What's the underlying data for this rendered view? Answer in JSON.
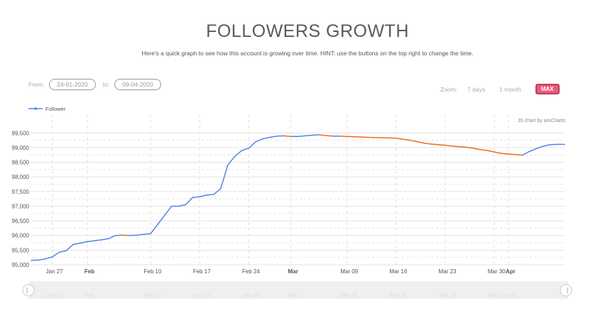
{
  "title": "FOLLOWERS GROWTH",
  "subtitle": "Here's a quick graph to see how this account is growing over time. HINT: use the buttons on the top right to change the time.",
  "range": {
    "from_label": "From:",
    "from_value": "24-01-2020",
    "to_label": "to:",
    "to_value": "09-04-2020"
  },
  "zoom": {
    "label": "Zoom:",
    "buttons": [
      "7 days",
      "1 month",
      "MAX"
    ],
    "active": "MAX"
  },
  "credit": "JS chart by amCharts",
  "colors": {
    "up": "#4f86e8",
    "down": "#f06a1d",
    "active_button": "#f0587a"
  },
  "chart_data": {
    "type": "line",
    "legend": "top-left",
    "series": [
      {
        "name": "Follower"
      }
    ],
    "x": [
      "2020-01-24",
      "2020-01-25",
      "2020-01-26",
      "2020-01-27",
      "2020-01-28",
      "2020-01-29",
      "2020-01-30",
      "2020-01-31",
      "2020-02-01",
      "2020-02-02",
      "2020-02-03",
      "2020-02-04",
      "2020-02-05",
      "2020-02-06",
      "2020-02-07",
      "2020-02-08",
      "2020-02-09",
      "2020-02-10",
      "2020-02-13",
      "2020-02-14",
      "2020-02-15",
      "2020-02-16",
      "2020-02-17",
      "2020-02-18",
      "2020-02-19",
      "2020-02-20",
      "2020-02-21",
      "2020-02-22",
      "2020-02-23",
      "2020-02-24",
      "2020-02-25",
      "2020-02-26",
      "2020-02-27",
      "2020-02-28",
      "2020-02-29",
      "2020-03-01",
      "2020-03-02",
      "2020-03-03",
      "2020-03-04",
      "2020-03-05",
      "2020-03-06",
      "2020-03-07",
      "2020-03-08",
      "2020-03-09",
      "2020-03-10",
      "2020-03-12",
      "2020-03-16",
      "2020-03-18",
      "2020-03-19",
      "2020-03-20",
      "2020-03-21",
      "2020-03-22",
      "2020-03-23",
      "2020-03-24",
      "2020-03-26",
      "2020-03-27",
      "2020-03-28",
      "2020-03-29",
      "2020-03-30",
      "2020-03-31",
      "2020-04-01",
      "2020-04-02",
      "2020-04-03",
      "2020-04-04",
      "2020-04-05",
      "2020-04-06",
      "2020-04-07",
      "2020-04-08",
      "2020-04-09"
    ],
    "y": [
      95150,
      95160,
      95200,
      95270,
      95430,
      95480,
      95700,
      95740,
      95790,
      95820,
      95850,
      95890,
      96000,
      96010,
      96000,
      96010,
      96040,
      96060,
      97000,
      97000,
      97050,
      97300,
      97320,
      97380,
      97400,
      97600,
      98400,
      98700,
      98900,
      98980,
      99200,
      99300,
      99350,
      99390,
      99400,
      99380,
      99380,
      99400,
      99420,
      99440,
      99410,
      99390,
      99390,
      99380,
      99370,
      99350,
      99320,
      99250,
      99200,
      99150,
      99120,
      99100,
      99080,
      99050,
      99010,
      98980,
      98930,
      98900,
      98850,
      98800,
      98780,
      98760,
      98740,
      98870,
      98970,
      99050,
      99100,
      99110,
      99110
    ],
    "ylim": [
      95000,
      99700
    ],
    "yticks": [
      "95,000",
      "95,500",
      "96,000",
      "96,500",
      "97,000",
      "97,500",
      "98,000",
      "98,500",
      "99,000",
      "99,500"
    ],
    "xticks": [
      {
        "label": "Jan 27",
        "date": "2020-01-27",
        "bold": false
      },
      {
        "label": "Feb",
        "date": "2020-02-01",
        "bold": true
      },
      {
        "label": "Feb 10",
        "date": "2020-02-10",
        "bold": false
      },
      {
        "label": "Feb 17",
        "date": "2020-02-17",
        "bold": false
      },
      {
        "label": "Feb 24",
        "date": "2020-02-24",
        "bold": false
      },
      {
        "label": "Mar",
        "date": "2020-03-01",
        "bold": true
      },
      {
        "label": "Mar 09",
        "date": "2020-03-09",
        "bold": false
      },
      {
        "label": "Mar 16",
        "date": "2020-03-16",
        "bold": false
      },
      {
        "label": "Mar 23",
        "date": "2020-03-23",
        "bold": false
      },
      {
        "label": "Mar 30",
        "date": "2020-03-30",
        "bold": false
      },
      {
        "label": "Apr",
        "date": "2020-04-01",
        "bold": true
      }
    ]
  }
}
